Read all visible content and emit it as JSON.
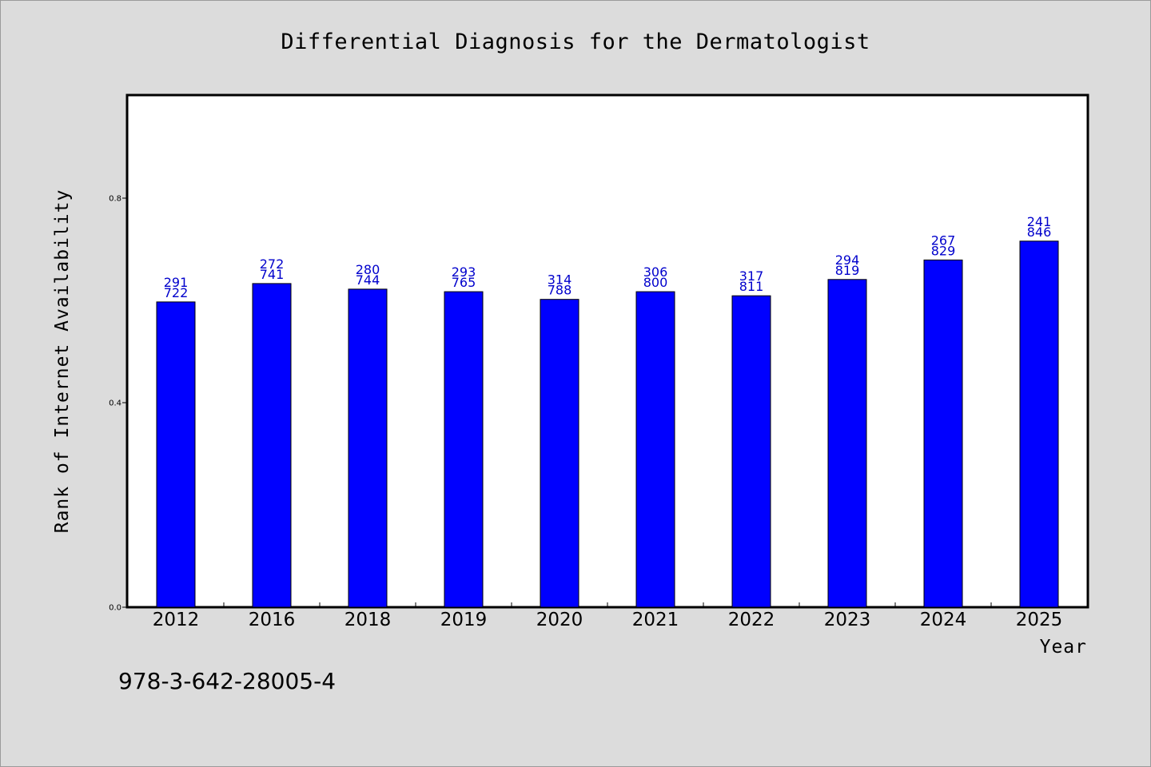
{
  "chart_data": {
    "type": "bar",
    "title": "Differential Diagnosis for the Dermatologist",
    "xlabel": "Year",
    "ylabel": "Rank of Internet Availability",
    "categories": [
      "2012",
      "2016",
      "2018",
      "2019",
      "2020",
      "2021",
      "2022",
      "2023",
      "2024",
      "2025"
    ],
    "values": [
      0.597,
      0.633,
      0.622,
      0.617,
      0.602,
      0.617,
      0.609,
      0.641,
      0.679,
      0.716
    ],
    "bar_labels": [
      [
        "291",
        "722"
      ],
      [
        "272",
        "741"
      ],
      [
        "280",
        "744"
      ],
      [
        "293",
        "765"
      ],
      [
        "314",
        "788"
      ],
      [
        "306",
        "800"
      ],
      [
        "317",
        "811"
      ],
      [
        "294",
        "819"
      ],
      [
        "267",
        "829"
      ],
      [
        "241",
        "846"
      ]
    ],
    "yticks": [
      "0.0",
      "0.4",
      "0.8"
    ],
    "ytick_values": [
      0.0,
      0.4,
      0.8
    ],
    "ylim": [
      0,
      1.0
    ],
    "grid": false,
    "bar_color": "#0000ff",
    "label_color": "#0000cc"
  },
  "footer": {
    "isbn": "978-3-642-28005-4"
  }
}
